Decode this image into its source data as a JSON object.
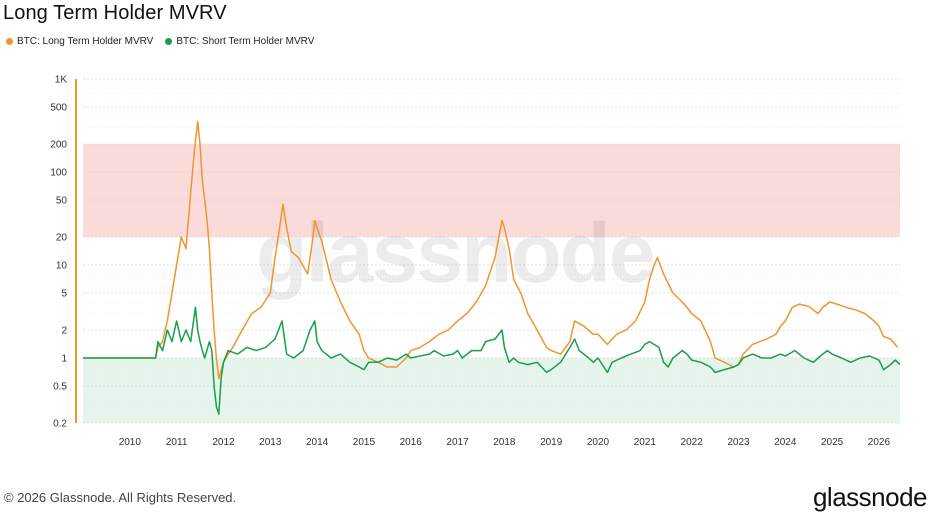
{
  "chart_data": {
    "type": "line",
    "title": "Long Term Holder MVRV",
    "y_scale": "log",
    "ylim": [
      0.2,
      1000
    ],
    "xlim": [
      2009.0,
      2026.45
    ],
    "y_ticks": [
      {
        "value": 1000,
        "label": "1K"
      },
      {
        "value": 500,
        "label": "500"
      },
      {
        "value": 200,
        "label": "200"
      },
      {
        "value": 100,
        "label": "100"
      },
      {
        "value": 50,
        "label": "50"
      },
      {
        "value": 20,
        "label": "20"
      },
      {
        "value": 10,
        "label": "10"
      },
      {
        "value": 5,
        "label": "5"
      },
      {
        "value": 2,
        "label": "2"
      },
      {
        "value": 1,
        "label": "1"
      },
      {
        "value": 0.5,
        "label": "0.5"
      },
      {
        "value": 0.2,
        "label": "0.2"
      }
    ],
    "x_ticks": [
      {
        "value": 2010,
        "label": "2010"
      },
      {
        "value": 2011,
        "label": "2011"
      },
      {
        "value": 2012,
        "label": "2012"
      },
      {
        "value": 2013,
        "label": "2013"
      },
      {
        "value": 2014,
        "label": "2014"
      },
      {
        "value": 2015,
        "label": "2015"
      },
      {
        "value": 2016,
        "label": "2016"
      },
      {
        "value": 2017,
        "label": "2017"
      },
      {
        "value": 2018,
        "label": "2018"
      },
      {
        "value": 2019,
        "label": "2019"
      },
      {
        "value": 2020,
        "label": "2020"
      },
      {
        "value": 2021,
        "label": "2021"
      },
      {
        "value": 2022,
        "label": "2022"
      },
      {
        "value": 2023,
        "label": "2023"
      },
      {
        "value": 2024,
        "label": "2024"
      },
      {
        "value": 2025,
        "label": "2025"
      },
      {
        "value": 2026,
        "label": "2026"
      }
    ],
    "bands": [
      {
        "from": 20,
        "to": 200,
        "color": "#fbdada"
      },
      {
        "from": 0.2,
        "to": 1,
        "color": "#e6f5ec"
      }
    ],
    "grid": true,
    "legend_position": "top-left",
    "watermark": "glassnode",
    "series": [
      {
        "name": "BTC: Long Term Holder MVRV",
        "color": "#f0952e",
        "points": [
          [
            2009.0,
            1
          ],
          [
            2010.55,
            1
          ],
          [
            2010.6,
            1.3
          ],
          [
            2010.7,
            1.5
          ],
          [
            2010.8,
            2.5
          ],
          [
            2010.9,
            5
          ],
          [
            2011.0,
            10
          ],
          [
            2011.1,
            20
          ],
          [
            2011.2,
            15
          ],
          [
            2011.3,
            60
          ],
          [
            2011.38,
            170
          ],
          [
            2011.45,
            350
          ],
          [
            2011.5,
            200
          ],
          [
            2011.55,
            80
          ],
          [
            2011.6,
            50
          ],
          [
            2011.65,
            30
          ],
          [
            2011.7,
            15
          ],
          [
            2011.75,
            5
          ],
          [
            2011.8,
            2
          ],
          [
            2011.85,
            1
          ],
          [
            2011.9,
            0.6
          ],
          [
            2012.0,
            0.9
          ],
          [
            2012.1,
            1.1
          ],
          [
            2012.2,
            1.3
          ],
          [
            2012.4,
            2
          ],
          [
            2012.6,
            3
          ],
          [
            2012.8,
            3.5
          ],
          [
            2013.0,
            5
          ],
          [
            2013.1,
            12
          ],
          [
            2013.2,
            25
          ],
          [
            2013.27,
            45
          ],
          [
            2013.35,
            25
          ],
          [
            2013.45,
            14
          ],
          [
            2013.6,
            12
          ],
          [
            2013.8,
            8
          ],
          [
            2013.9,
            18
          ],
          [
            2013.95,
            30
          ],
          [
            2014.0,
            25
          ],
          [
            2014.1,
            18
          ],
          [
            2014.3,
            7
          ],
          [
            2014.5,
            4
          ],
          [
            2014.7,
            2.5
          ],
          [
            2014.9,
            1.8
          ],
          [
            2015.0,
            1.2
          ],
          [
            2015.1,
            1
          ],
          [
            2015.3,
            0.9
          ],
          [
            2015.5,
            0.8
          ],
          [
            2015.7,
            0.8
          ],
          [
            2015.9,
            1.0
          ],
          [
            2016.0,
            1.2
          ],
          [
            2016.2,
            1.3
          ],
          [
            2016.4,
            1.5
          ],
          [
            2016.6,
            1.8
          ],
          [
            2016.8,
            2
          ],
          [
            2017.0,
            2.5
          ],
          [
            2017.2,
            3
          ],
          [
            2017.4,
            4
          ],
          [
            2017.6,
            6
          ],
          [
            2017.8,
            12
          ],
          [
            2017.95,
            30
          ],
          [
            2018.0,
            25
          ],
          [
            2018.1,
            15
          ],
          [
            2018.2,
            7
          ],
          [
            2018.35,
            5
          ],
          [
            2018.5,
            3
          ],
          [
            2018.7,
            2
          ],
          [
            2018.9,
            1.3
          ],
          [
            2019.0,
            1.2
          ],
          [
            2019.2,
            1.1
          ],
          [
            2019.4,
            1.5
          ],
          [
            2019.5,
            2.5
          ],
          [
            2019.7,
            2.2
          ],
          [
            2019.9,
            1.8
          ],
          [
            2020.0,
            1.8
          ],
          [
            2020.2,
            1.4
          ],
          [
            2020.4,
            1.8
          ],
          [
            2020.6,
            2
          ],
          [
            2020.8,
            2.5
          ],
          [
            2021.0,
            4
          ],
          [
            2021.1,
            7
          ],
          [
            2021.2,
            10
          ],
          [
            2021.27,
            12
          ],
          [
            2021.4,
            8
          ],
          [
            2021.6,
            5
          ],
          [
            2021.8,
            4
          ],
          [
            2021.9,
            3.5
          ],
          [
            2022.0,
            3
          ],
          [
            2022.2,
            2.5
          ],
          [
            2022.4,
            1.5
          ],
          [
            2022.5,
            1
          ],
          [
            2022.7,
            0.9
          ],
          [
            2022.9,
            0.8
          ],
          [
            2023.0,
            0.85
          ],
          [
            2023.1,
            1.1
          ],
          [
            2023.3,
            1.4
          ],
          [
            2023.6,
            1.6
          ],
          [
            2023.8,
            1.8
          ],
          [
            2023.9,
            2.2
          ],
          [
            2024.0,
            2.5
          ],
          [
            2024.15,
            3.5
          ],
          [
            2024.3,
            3.8
          ],
          [
            2024.5,
            3.6
          ],
          [
            2024.7,
            3
          ],
          [
            2024.8,
            3.5
          ],
          [
            2024.95,
            4
          ],
          [
            2025.1,
            3.8
          ],
          [
            2025.3,
            3.5
          ],
          [
            2025.5,
            3.3
          ],
          [
            2025.7,
            3
          ],
          [
            2025.9,
            2.5
          ],
          [
            2026.0,
            2.2
          ],
          [
            2026.1,
            1.7
          ],
          [
            2026.25,
            1.6
          ],
          [
            2026.4,
            1.3
          ]
        ]
      },
      {
        "name": "BTC: Short Term Holder MVRV",
        "color": "#1a9e4a",
        "points": [
          [
            2009.0,
            1
          ],
          [
            2010.55,
            1
          ],
          [
            2010.6,
            1.5
          ],
          [
            2010.7,
            1.2
          ],
          [
            2010.8,
            2
          ],
          [
            2010.9,
            1.5
          ],
          [
            2011.0,
            2.5
          ],
          [
            2011.1,
            1.5
          ],
          [
            2011.2,
            2
          ],
          [
            2011.3,
            1.5
          ],
          [
            2011.4,
            3.5
          ],
          [
            2011.45,
            2
          ],
          [
            2011.5,
            1.5
          ],
          [
            2011.55,
            1.2
          ],
          [
            2011.6,
            1
          ],
          [
            2011.7,
            1.5
          ],
          [
            2011.75,
            1.2
          ],
          [
            2011.8,
            0.5
          ],
          [
            2011.85,
            0.3
          ],
          [
            2011.9,
            0.25
          ],
          [
            2011.95,
            0.6
          ],
          [
            2012.0,
            0.9
          ],
          [
            2012.1,
            1.2
          ],
          [
            2012.3,
            1.1
          ],
          [
            2012.5,
            1.3
          ],
          [
            2012.7,
            1.2
          ],
          [
            2012.9,
            1.3
          ],
          [
            2013.1,
            1.6
          ],
          [
            2013.25,
            2.5
          ],
          [
            2013.35,
            1.1
          ],
          [
            2013.5,
            1
          ],
          [
            2013.7,
            1.2
          ],
          [
            2013.85,
            2
          ],
          [
            2013.95,
            2.5
          ],
          [
            2014.0,
            1.5
          ],
          [
            2014.1,
            1.2
          ],
          [
            2014.3,
            1
          ],
          [
            2014.5,
            1.1
          ],
          [
            2014.7,
            0.9
          ],
          [
            2014.9,
            0.8
          ],
          [
            2015.0,
            0.75
          ],
          [
            2015.1,
            0.9
          ],
          [
            2015.3,
            0.9
          ],
          [
            2015.5,
            1
          ],
          [
            2015.7,
            0.95
          ],
          [
            2015.9,
            1.1
          ],
          [
            2016.0,
            1
          ],
          [
            2016.2,
            1.05
          ],
          [
            2016.4,
            1.1
          ],
          [
            2016.5,
            1.2
          ],
          [
            2016.7,
            1.05
          ],
          [
            2016.9,
            1.1
          ],
          [
            2017.0,
            1.2
          ],
          [
            2017.1,
            1
          ],
          [
            2017.3,
            1.2
          ],
          [
            2017.5,
            1.2
          ],
          [
            2017.6,
            1.5
          ],
          [
            2017.8,
            1.6
          ],
          [
            2017.95,
            2
          ],
          [
            2018.0,
            1.3
          ],
          [
            2018.1,
            0.9
          ],
          [
            2018.2,
            1
          ],
          [
            2018.3,
            0.9
          ],
          [
            2018.5,
            0.85
          ],
          [
            2018.7,
            0.9
          ],
          [
            2018.9,
            0.7
          ],
          [
            2019.0,
            0.75
          ],
          [
            2019.2,
            0.9
          ],
          [
            2019.4,
            1.3
          ],
          [
            2019.5,
            1.6
          ],
          [
            2019.6,
            1.2
          ],
          [
            2019.8,
            1
          ],
          [
            2019.9,
            0.9
          ],
          [
            2020.0,
            1
          ],
          [
            2020.2,
            0.7
          ],
          [
            2020.3,
            0.9
          ],
          [
            2020.5,
            1
          ],
          [
            2020.7,
            1.1
          ],
          [
            2020.9,
            1.2
          ],
          [
            2021.0,
            1.4
          ],
          [
            2021.1,
            1.5
          ],
          [
            2021.3,
            1.3
          ],
          [
            2021.4,
            0.9
          ],
          [
            2021.5,
            0.8
          ],
          [
            2021.6,
            1
          ],
          [
            2021.8,
            1.2
          ],
          [
            2021.9,
            1.1
          ],
          [
            2022.0,
            0.95
          ],
          [
            2022.2,
            0.9
          ],
          [
            2022.4,
            0.8
          ],
          [
            2022.5,
            0.7
          ],
          [
            2022.7,
            0.75
          ],
          [
            2022.9,
            0.8
          ],
          [
            2023.0,
            0.85
          ],
          [
            2023.1,
            1
          ],
          [
            2023.3,
            1.1
          ],
          [
            2023.5,
            1
          ],
          [
            2023.7,
            1
          ],
          [
            2023.9,
            1.1
          ],
          [
            2024.0,
            1.05
          ],
          [
            2024.2,
            1.2
          ],
          [
            2024.4,
            1
          ],
          [
            2024.6,
            0.9
          ],
          [
            2024.8,
            1.1
          ],
          [
            2024.9,
            1.2
          ],
          [
            2025.0,
            1.1
          ],
          [
            2025.2,
            1
          ],
          [
            2025.4,
            0.9
          ],
          [
            2025.6,
            1
          ],
          [
            2025.8,
            1.05
          ],
          [
            2026.0,
            0.95
          ],
          [
            2026.1,
            0.75
          ],
          [
            2026.25,
            0.85
          ],
          [
            2026.35,
            0.95
          ],
          [
            2026.45,
            0.85
          ]
        ]
      }
    ]
  },
  "footer": {
    "copyright": "© 2026 Glassnode. All Rights Reserved.",
    "brand": "glassnode"
  },
  "colors": {
    "orange": "#f0952e",
    "green": "#1a9e4a"
  }
}
